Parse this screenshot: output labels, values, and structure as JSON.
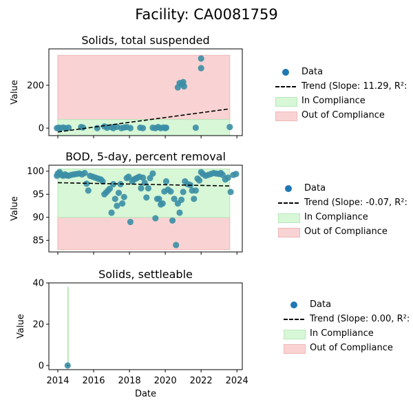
{
  "figure_title": "Facility: CA0081759",
  "colors": {
    "point": "#3b8ea5",
    "compliance_fill": "#d7f7d7",
    "compliance_edge": "#b7e8b7",
    "noncompliance_fill": "#f9d3d3",
    "noncompliance_edge": "#f0b7b7",
    "trend": "#000000",
    "legend_marker": "#1f77b4"
  },
  "chart_data": [
    {
      "type": "scatter",
      "title": "Solids, total suspended",
      "xlabel": "",
      "ylabel": "Value",
      "ylim": [
        -35,
        370
      ],
      "yticks": [
        0,
        200
      ],
      "xticks": [
        2014,
        2016,
        2018,
        2020,
        2022,
        2024
      ],
      "show_xtick_labels": false,
      "compliance_band": {
        "x": [
          2014.0,
          2023.6
        ],
        "y": [
          -35,
          40
        ]
      },
      "noncompliance_band": {
        "x": [
          2014.0,
          2023.6
        ],
        "y": [
          40,
          340
        ]
      },
      "trend": {
        "x": [
          2014.0,
          2023.6
        ],
        "y": [
          -18,
          90
        ]
      },
      "x": [
        2013.95,
        2014.05,
        2014.15,
        2014.3,
        2014.45,
        2014.6,
        2015.3,
        2015.4,
        2016.2,
        2016.6,
        2016.75,
        2017.0,
        2017.1,
        2017.3,
        2017.55,
        2017.7,
        2017.85,
        2018.05,
        2018.6,
        2018.75,
        2019.3,
        2019.45,
        2019.6,
        2019.75,
        2019.9,
        2020.0,
        2020.05,
        2020.7,
        2020.8,
        2020.95,
        2021.05,
        2021.0,
        2021.7,
        2022.0,
        2022.0,
        2023.6
      ],
      "y": [
        0,
        2,
        0,
        3,
        0,
        2,
        5,
        3,
        0,
        8,
        2,
        4,
        0,
        6,
        0,
        3,
        5,
        0,
        2,
        0,
        2,
        0,
        5,
        0,
        3,
        0,
        2,
        190,
        210,
        205,
        195,
        215,
        2,
        280,
        325,
        5
      ]
    },
    {
      "type": "scatter",
      "title": "BOD, 5-day, percent removal",
      "xlabel": "",
      "ylabel": "Value",
      "ylim": [
        82.5,
        101.3
      ],
      "yticks": [
        85,
        90,
        95,
        100
      ],
      "xticks": [
        2014,
        2016,
        2018,
        2020,
        2022,
        2024
      ],
      "show_xtick_labels": false,
      "compliance_band": {
        "x": [
          2014.0,
          2023.6
        ],
        "y": [
          90,
          100.5
        ]
      },
      "noncompliance_band": {
        "x": [
          2014.0,
          2023.6
        ],
        "y": [
          83,
          90
        ]
      },
      "trend": {
        "x": [
          2014.0,
          2023.6
        ],
        "y": [
          97.5,
          96.8
        ]
      },
      "x": [
        2013.95,
        2014.0,
        2014.1,
        2014.2,
        2014.3,
        2014.4,
        2014.5,
        2014.6,
        2014.75,
        2014.9,
        2015.05,
        2015.2,
        2015.35,
        2015.5,
        2015.6,
        2015.7,
        2015.8,
        2015.95,
        2016.1,
        2016.25,
        2016.4,
        2016.5,
        2016.6,
        2016.7,
        2016.8,
        2016.9,
        2017.0,
        2017.1,
        2017.2,
        2017.3,
        2017.4,
        2017.5,
        2017.6,
        2017.7,
        2017.85,
        2017.95,
        2018.05,
        2018.15,
        2018.25,
        2018.35,
        2018.45,
        2018.55,
        2018.65,
        2018.75,
        2018.85,
        2018.95,
        2019.05,
        2019.15,
        2019.3,
        2019.45,
        2019.55,
        2019.65,
        2019.75,
        2019.85,
        2019.95,
        2020.05,
        2020.15,
        2020.3,
        2020.4,
        2020.5,
        2020.6,
        2020.7,
        2020.8,
        2020.9,
        2021.0,
        2021.1,
        2021.25,
        2021.4,
        2021.5,
        2021.6,
        2021.7,
        2021.8,
        2021.9,
        2022.0,
        2022.1,
        2022.25,
        2022.4,
        2022.55,
        2022.7,
        2022.85,
        2023.0,
        2023.1,
        2023.2,
        2023.35,
        2023.5,
        2023.65,
        2023.8,
        2023.95
      ],
      "y": [
        99.0,
        99.5,
        99.8,
        99.2,
        99.0,
        99.3,
        99.1,
        99.0,
        99.2,
        99.3,
        99.4,
        99.5,
        99.3,
        99.6,
        97.3,
        95.8,
        99.0,
        98.8,
        98.6,
        98.4,
        98.2,
        97.8,
        95.0,
        95.4,
        95.8,
        96.2,
        91.0,
        97.2,
        94.0,
        92.5,
        95.3,
        97.2,
        93.0,
        94.4,
        98.5,
        98.8,
        89.0,
        97.8,
        98.2,
        98.4,
        98.6,
        98.8,
        96.3,
        98.6,
        97.5,
        94.3,
        96.3,
        98.5,
        99.5,
        89.8,
        94.0,
        94.0,
        92.8,
        93.0,
        95.6,
        97.8,
        96.0,
        95.6,
        89.3,
        94.0,
        84.0,
        93.0,
        91.0,
        93.8,
        95.5,
        97.8,
        97.2,
        97.0,
        95.8,
        94.0,
        95.8,
        98.4,
        98.0,
        99.8,
        99.4,
        99.0,
        99.2,
        99.4,
        99.6,
        99.5,
        99.4,
        99.6,
        99.2,
        98.2,
        98.6,
        95.5,
        99.2,
        99.4
      ]
    },
    {
      "type": "scatter",
      "title": "Solids, settleable",
      "xlabel": "Date",
      "ylabel": "Value",
      "ylim": [
        -2,
        40
      ],
      "yticks": [
        0,
        20,
        40
      ],
      "xticks": [
        2014,
        2016,
        2018,
        2020,
        2022,
        2024
      ],
      "show_xtick_labels": true,
      "compliance_band": {
        "x": [
          2014.55,
          2014.58
        ],
        "y": [
          0,
          38
        ]
      },
      "noncompliance_band": null,
      "trend": {
        "x": [
          2014.55,
          2014.58
        ],
        "y": [
          0,
          0
        ]
      },
      "x": [
        2014.55
      ],
      "y": [
        0
      ]
    }
  ],
  "legends": [
    {
      "data": "Data",
      "trend": "Trend (Slope: 11.29, R²:",
      "in_compliance": "In Compliance",
      "out_of_compliance": "Out of Compliance"
    },
    {
      "data": "Data",
      "trend": "Trend (Slope: -0.07, R²:",
      "in_compliance": "In Compliance",
      "out_of_compliance": "Out of Compliance"
    },
    {
      "data": "Data",
      "trend": "Trend (Slope: 0.00, R²:",
      "in_compliance": "In Compliance",
      "out_of_compliance": "Out of Compliance"
    }
  ]
}
